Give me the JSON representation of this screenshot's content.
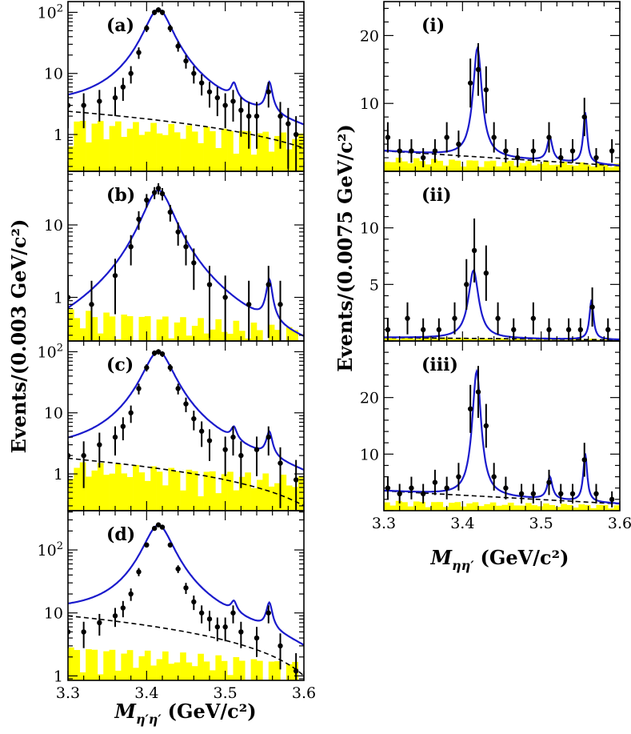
{
  "figure": {
    "left_ylabel": "Events/(0.003 GeV/c²)",
    "right_ylabel": "Events/(0.0075 GeV/c²)",
    "left_xlabel_symbol": "M",
    "left_xlabel_sub": "η′η′",
    "left_xlabel_unit": "(GeV/c²)",
    "right_xlabel_symbol": "M",
    "right_xlabel_sub": "ηη′",
    "right_xlabel_unit": "(GeV/c²)"
  },
  "colors": {
    "fit": "#1a1acc",
    "background_fill": "#ffff00",
    "data": "#000000",
    "bkg_line": "#000000"
  },
  "chart_data": [
    {
      "panel": "(a)",
      "type": "line",
      "yscale": "log",
      "xlim": [
        3.3,
        3.6
      ],
      "ylim": [
        0.25,
        150
      ],
      "yticks": [
        {
          "v": 1,
          "label": "1"
        },
        {
          "v": 10,
          "label": "10"
        },
        {
          "v": 100,
          "label": "10²"
        }
      ],
      "xtick_labels": [],
      "peaks": [
        {
          "x": 3.415,
          "height": 110,
          "width": 0.016
        },
        {
          "x": 3.511,
          "height": 3.0,
          "width": 0.004
        },
        {
          "x": 3.556,
          "height": 5.0,
          "width": 0.004
        }
      ],
      "background": {
        "start": 2.4,
        "end": 0.6
      },
      "hist_level": 1.6,
      "data_points": [
        [
          3.3,
          3
        ],
        [
          3.32,
          3
        ],
        [
          3.34,
          3.5
        ],
        [
          3.36,
          4
        ],
        [
          3.37,
          6
        ],
        [
          3.38,
          10
        ],
        [
          3.39,
          22
        ],
        [
          3.4,
          55
        ],
        [
          3.41,
          100
        ],
        [
          3.415,
          110
        ],
        [
          3.42,
          100
        ],
        [
          3.43,
          55
        ],
        [
          3.44,
          28
        ],
        [
          3.45,
          16
        ],
        [
          3.46,
          10
        ],
        [
          3.47,
          7
        ],
        [
          3.48,
          5
        ],
        [
          3.49,
          4
        ],
        [
          3.5,
          3
        ],
        [
          3.51,
          3.5
        ],
        [
          3.52,
          2.5
        ],
        [
          3.53,
          2
        ],
        [
          3.54,
          2
        ],
        [
          3.555,
          5
        ],
        [
          3.57,
          2
        ],
        [
          3.58,
          1.5
        ],
        [
          3.59,
          1
        ]
      ]
    },
    {
      "panel": "(b)",
      "type": "line",
      "yscale": "log",
      "xlim": [
        3.3,
        3.6
      ],
      "ylim": [
        0.25,
        55
      ],
      "yticks": [
        {
          "v": 1,
          "label": "1"
        },
        {
          "v": 10,
          "label": "10"
        }
      ],
      "xtick_labels": [],
      "peaks": [
        {
          "x": 3.415,
          "height": 30,
          "width": 0.018
        },
        {
          "x": 3.556,
          "height": 1.3,
          "width": 0.004
        }
      ],
      "background": {
        "start": 0.0,
        "end": 0.0
      },
      "hist_level": 0.6,
      "data_points": [
        [
          3.3,
          1
        ],
        [
          3.33,
          0.8
        ],
        [
          3.36,
          2
        ],
        [
          3.38,
          5
        ],
        [
          3.39,
          12
        ],
        [
          3.4,
          22
        ],
        [
          3.41,
          28
        ],
        [
          3.415,
          32
        ],
        [
          3.42,
          27
        ],
        [
          3.43,
          15
        ],
        [
          3.44,
          8
        ],
        [
          3.45,
          5
        ],
        [
          3.46,
          3
        ],
        [
          3.48,
          1.5
        ],
        [
          3.5,
          1
        ],
        [
          3.53,
          0.8
        ],
        [
          3.555,
          1.5
        ],
        [
          3.57,
          0.8
        ]
      ]
    },
    {
      "panel": "(c)",
      "type": "line",
      "yscale": "log",
      "xlim": [
        3.3,
        3.6
      ],
      "ylim": [
        0.25,
        150
      ],
      "yticks": [
        {
          "v": 1,
          "label": "1"
        },
        {
          "v": 10,
          "label": "10"
        },
        {
          "v": 100,
          "label": "10²"
        }
      ],
      "xtick_labels": [],
      "peaks": [
        {
          "x": 3.415,
          "height": 100,
          "width": 0.017
        },
        {
          "x": 3.511,
          "height": 2.2,
          "width": 0.004
        },
        {
          "x": 3.556,
          "height": 3.0,
          "width": 0.004
        }
      ],
      "background": {
        "start": 1.8,
        "end": 0.3
      },
      "hist_level": 1.4,
      "data_points": [
        [
          3.3,
          2
        ],
        [
          3.32,
          2
        ],
        [
          3.34,
          3
        ],
        [
          3.36,
          4
        ],
        [
          3.37,
          6
        ],
        [
          3.38,
          10
        ],
        [
          3.39,
          25
        ],
        [
          3.4,
          55
        ],
        [
          3.41,
          95
        ],
        [
          3.415,
          100
        ],
        [
          3.42,
          92
        ],
        [
          3.43,
          55
        ],
        [
          3.44,
          25
        ],
        [
          3.45,
          14
        ],
        [
          3.46,
          8
        ],
        [
          3.47,
          5
        ],
        [
          3.48,
          3.5
        ],
        [
          3.5,
          2.5
        ],
        [
          3.51,
          4
        ],
        [
          3.52,
          2
        ],
        [
          3.54,
          2.5
        ],
        [
          3.555,
          4
        ],
        [
          3.57,
          1.5
        ],
        [
          3.59,
          0.8
        ]
      ]
    },
    {
      "panel": "(d)",
      "type": "line",
      "yscale": "log",
      "xlim": [
        3.3,
        3.6
      ],
      "ylim": [
        0.85,
        420
      ],
      "yticks": [
        {
          "v": 1,
          "label": "1"
        },
        {
          "v": 10,
          "label": "10"
        },
        {
          "v": 100,
          "label": "10²"
        }
      ],
      "xtick_labels": [
        "3.3",
        "3.4",
        "3.5",
        "3.6"
      ],
      "peaks": [
        {
          "x": 3.415,
          "height": 240,
          "width": 0.017
        },
        {
          "x": 3.511,
          "height": 5.0,
          "width": 0.004
        },
        {
          "x": 3.556,
          "height": 9.0,
          "width": 0.004
        }
      ],
      "background": {
        "start": 9.0,
        "end": 1.0
      },
      "hist_level": 2.6,
      "data_points": [
        [
          3.3,
          5
        ],
        [
          3.32,
          5
        ],
        [
          3.34,
          7
        ],
        [
          3.36,
          9
        ],
        [
          3.37,
          12
        ],
        [
          3.38,
          20
        ],
        [
          3.39,
          45
        ],
        [
          3.4,
          120
        ],
        [
          3.41,
          220
        ],
        [
          3.415,
          250
        ],
        [
          3.42,
          230
        ],
        [
          3.43,
          120
        ],
        [
          3.44,
          50
        ],
        [
          3.45,
          25
        ],
        [
          3.46,
          15
        ],
        [
          3.47,
          10
        ],
        [
          3.48,
          8
        ],
        [
          3.49,
          6
        ],
        [
          3.5,
          6
        ],
        [
          3.51,
          10
        ],
        [
          3.52,
          5
        ],
        [
          3.54,
          4
        ],
        [
          3.555,
          10
        ],
        [
          3.57,
          3
        ],
        [
          3.59,
          1.2
        ]
      ]
    },
    {
      "panel": "(i)",
      "type": "line",
      "yscale": "linear",
      "xlim": [
        3.3,
        3.6
      ],
      "ylim": [
        0,
        25
      ],
      "yticks": [
        {
          "v": 10,
          "label": "10"
        },
        {
          "v": 20,
          "label": "20"
        }
      ],
      "xtick_labels": [],
      "peaks": [
        {
          "x": 3.419,
          "height": 16,
          "width": 0.007
        },
        {
          "x": 3.511,
          "height": 3.5,
          "width": 0.004
        },
        {
          "x": 3.556,
          "height": 7.5,
          "width": 0.003
        }
      ],
      "background": {
        "start": 3.0,
        "end": 0.8
      },
      "hist_level": 1.8,
      "data_points": [
        [
          3.305,
          5
        ],
        [
          3.32,
          3
        ],
        [
          3.335,
          3
        ],
        [
          3.35,
          2
        ],
        [
          3.365,
          3
        ],
        [
          3.38,
          5
        ],
        [
          3.395,
          4
        ],
        [
          3.41,
          13
        ],
        [
          3.42,
          15
        ],
        [
          3.43,
          12
        ],
        [
          3.44,
          5
        ],
        [
          3.455,
          3
        ],
        [
          3.47,
          2
        ],
        [
          3.49,
          3
        ],
        [
          3.51,
          5
        ],
        [
          3.525,
          2
        ],
        [
          3.54,
          3
        ],
        [
          3.555,
          8
        ],
        [
          3.57,
          2
        ],
        [
          3.59,
          3
        ]
      ]
    },
    {
      "panel": "(ii)",
      "type": "line",
      "yscale": "linear",
      "xlim": [
        3.3,
        3.6
      ],
      "ylim": [
        0,
        15
      ],
      "yticks": [
        {
          "v": 5,
          "label": "5"
        },
        {
          "v": 10,
          "label": "10"
        }
      ],
      "xtick_labels": [],
      "peaks": [
        {
          "x": 3.414,
          "height": 6.0,
          "width": 0.008
        },
        {
          "x": 3.564,
          "height": 3.5,
          "width": 0.003
        }
      ],
      "background": {
        "start": 0.3,
        "end": 0.1
      },
      "hist_level": 0.3,
      "data_points": [
        [
          3.305,
          1
        ],
        [
          3.33,
          2
        ],
        [
          3.35,
          1
        ],
        [
          3.37,
          1
        ],
        [
          3.39,
          2
        ],
        [
          3.405,
          5
        ],
        [
          3.415,
          8
        ],
        [
          3.43,
          6
        ],
        [
          3.445,
          2
        ],
        [
          3.465,
          1
        ],
        [
          3.49,
          2
        ],
        [
          3.51,
          1
        ],
        [
          3.535,
          1
        ],
        [
          3.55,
          1
        ],
        [
          3.565,
          3
        ],
        [
          3.585,
          1
        ]
      ]
    },
    {
      "panel": "(iii)",
      "type": "line",
      "yscale": "linear",
      "xlim": [
        3.3,
        3.6
      ],
      "ylim": [
        0,
        30
      ],
      "yticks": [
        {
          "v": 10,
          "label": "10"
        },
        {
          "v": 20,
          "label": "20"
        }
      ],
      "xtick_labels": [
        "3.3",
        "3.4",
        "3.5",
        "3.6"
      ],
      "peaks": [
        {
          "x": 3.418,
          "height": 22,
          "width": 0.007
        },
        {
          "x": 3.511,
          "height": 4.0,
          "width": 0.004
        },
        {
          "x": 3.556,
          "height": 8.5,
          "width": 0.003
        }
      ],
      "background": {
        "start": 3.5,
        "end": 1.2
      },
      "hist_level": 1.6,
      "data_points": [
        [
          3.305,
          4
        ],
        [
          3.32,
          3
        ],
        [
          3.335,
          4
        ],
        [
          3.35,
          3
        ],
        [
          3.365,
          5
        ],
        [
          3.38,
          4
        ],
        [
          3.395,
          6
        ],
        [
          3.41,
          18
        ],
        [
          3.42,
          21
        ],
        [
          3.43,
          15
        ],
        [
          3.44,
          6
        ],
        [
          3.455,
          4
        ],
        [
          3.475,
          3
        ],
        [
          3.49,
          3
        ],
        [
          3.51,
          5
        ],
        [
          3.525,
          3
        ],
        [
          3.54,
          3
        ],
        [
          3.555,
          9
        ],
        [
          3.57,
          3
        ],
        [
          3.59,
          2
        ]
      ]
    }
  ]
}
